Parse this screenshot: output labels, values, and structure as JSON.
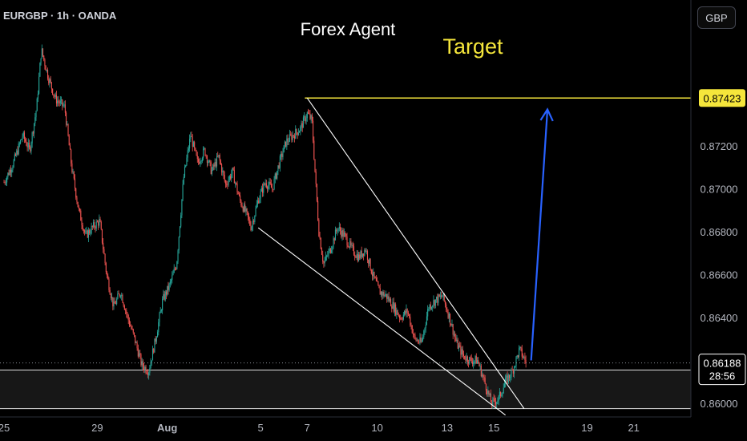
{
  "header": {
    "symbol": "EURGBP · 1h · OANDA",
    "currency": "GBP"
  },
  "annotations": {
    "author": "Forex Agent",
    "target_label": "Target"
  },
  "price_labels": {
    "target": "0.87423",
    "current": "0.86188",
    "countdown": "28:56"
  },
  "colors": {
    "up": "#26a69a",
    "down": "#ef5350",
    "target_line": "#f5e63b",
    "arrow": "#2962ff",
    "wedge": "#ffffff"
  },
  "chart_data": {
    "type": "candlestick",
    "title": "",
    "xlabel": "",
    "ylabel": "",
    "ylim": [
      0.85955,
      0.8788
    ],
    "x_ticks": [
      {
        "label": "25",
        "day": 25
      },
      {
        "label": "29",
        "day": 29
      },
      {
        "label": "Aug",
        "day": 32
      },
      {
        "label": "5",
        "day": 36
      },
      {
        "label": "7",
        "day": 38
      },
      {
        "label": "10",
        "day": 41
      },
      {
        "label": "13",
        "day": 44
      },
      {
        "label": "15",
        "day": 46
      },
      {
        "label": "19",
        "day": 50
      },
      {
        "label": "21",
        "day": 52
      }
    ],
    "y_ticks": [
      "0.87200",
      "0.87000",
      "0.86800",
      "0.86600",
      "0.86400",
      "0.86000"
    ],
    "price_path": [
      [
        25.0,
        0.8703
      ],
      [
        25.4,
        0.8712
      ],
      [
        25.8,
        0.8725
      ],
      [
        26.1,
        0.8718
      ],
      [
        26.4,
        0.8738
      ],
      [
        26.6,
        0.8765
      ],
      [
        26.9,
        0.8752
      ],
      [
        27.2,
        0.8742
      ],
      [
        27.6,
        0.8738
      ],
      [
        27.9,
        0.871
      ],
      [
        28.2,
        0.869
      ],
      [
        28.5,
        0.8678
      ],
      [
        28.8,
        0.8682
      ],
      [
        29.1,
        0.8685
      ],
      [
        29.4,
        0.866
      ],
      [
        29.7,
        0.8645
      ],
      [
        30.0,
        0.8652
      ],
      [
        30.3,
        0.864
      ],
      [
        30.6,
        0.863
      ],
      [
        30.9,
        0.8618
      ],
      [
        31.2,
        0.8615
      ],
      [
        31.5,
        0.863
      ],
      [
        31.8,
        0.8648
      ],
      [
        32.1,
        0.8655
      ],
      [
        32.4,
        0.8665
      ],
      [
        32.7,
        0.8705
      ],
      [
        33.0,
        0.8725
      ],
      [
        33.3,
        0.8712
      ],
      [
        33.6,
        0.8718
      ],
      [
        33.9,
        0.8708
      ],
      [
        34.2,
        0.8715
      ],
      [
        34.5,
        0.8702
      ],
      [
        34.8,
        0.8708
      ],
      [
        35.1,
        0.8695
      ],
      [
        35.4,
        0.8688
      ],
      [
        35.6,
        0.8682
      ],
      [
        35.9,
        0.8695
      ],
      [
        36.2,
        0.8703
      ],
      [
        36.5,
        0.87
      ],
      [
        36.8,
        0.8712
      ],
      [
        37.1,
        0.8722
      ],
      [
        37.4,
        0.8725
      ],
      [
        37.7,
        0.8728
      ],
      [
        38.0,
        0.8735
      ],
      [
        38.2,
        0.8732
      ],
      [
        38.35,
        0.8705
      ],
      [
        38.5,
        0.868
      ],
      [
        38.7,
        0.8665
      ],
      [
        39.0,
        0.8672
      ],
      [
        39.3,
        0.8682
      ],
      [
        39.6,
        0.8678
      ],
      [
        39.9,
        0.8672
      ],
      [
        40.2,
        0.8668
      ],
      [
        40.5,
        0.8672
      ],
      [
        40.8,
        0.866
      ],
      [
        41.1,
        0.8652
      ],
      [
        41.4,
        0.865
      ],
      [
        41.7,
        0.8645
      ],
      [
        42.0,
        0.864
      ],
      [
        42.3,
        0.8643
      ],
      [
        42.6,
        0.863
      ],
      [
        42.9,
        0.8628
      ],
      [
        43.2,
        0.8645
      ],
      [
        43.5,
        0.8648
      ],
      [
        43.8,
        0.865
      ],
      [
        44.1,
        0.864
      ],
      [
        44.4,
        0.8628
      ],
      [
        44.7,
        0.8622
      ],
      [
        45.0,
        0.862
      ],
      [
        45.3,
        0.862
      ],
      [
        45.6,
        0.861
      ],
      [
        45.9,
        0.86
      ],
      [
        46.2,
        0.8602
      ],
      [
        46.5,
        0.861
      ],
      [
        46.8,
        0.8615
      ],
      [
        47.1,
        0.8625
      ],
      [
        47.4,
        0.86188
      ]
    ],
    "target_level": 0.87423,
    "current_price": 0.86188,
    "support_zone": [
      0.85975,
      0.86155
    ],
    "wedge": {
      "upper": [
        [
          38.0,
          0.87423
        ],
        [
          47.3,
          0.85975
        ]
      ],
      "lower": [
        [
          35.9,
          0.86818
        ],
        [
          46.5,
          0.85945
        ]
      ]
    },
    "projection": [
      [
        47.6,
        0.862
      ],
      [
        48.3,
        0.8737
      ]
    ]
  }
}
